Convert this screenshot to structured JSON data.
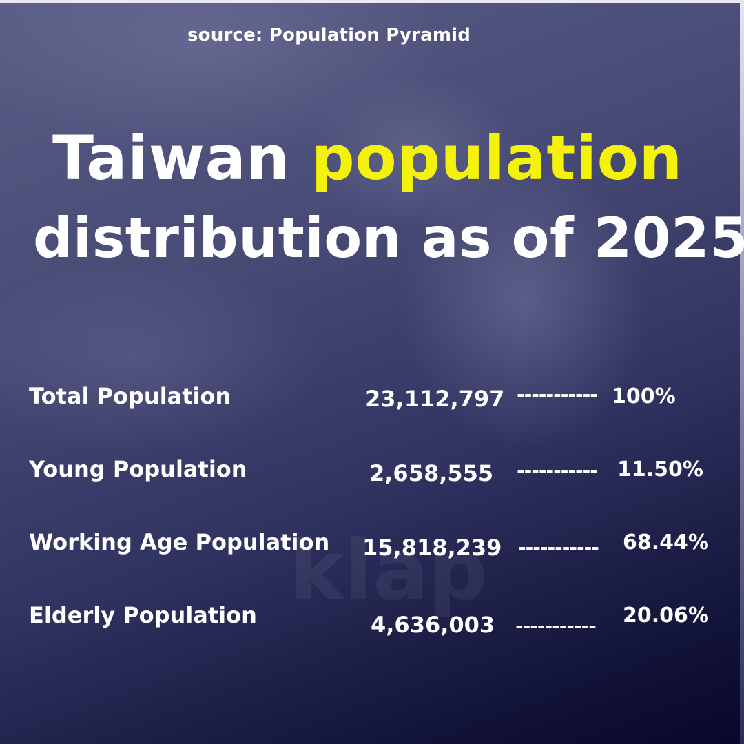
{
  "source": "source: Population Pyramid",
  "title": {
    "line1_part1": "Taiwan ",
    "line1_highlight": "population",
    "line2": "distribution as of 2025",
    "highlight_color": "#f4f20b"
  },
  "dash": "-----------",
  "rows": [
    {
      "label": "Total Population",
      "value": "23,112,797",
      "percent": "100%"
    },
    {
      "label": "Young Population",
      "value": "2,658,555",
      "percent": "11.50%"
    },
    {
      "label": "Working Age Population",
      "value": "15,818,239",
      "percent": "68.44%"
    },
    {
      "label": "Elderly Population",
      "value": "4,636,003",
      "percent": "20.06%"
    }
  ],
  "watermark": "klap"
}
